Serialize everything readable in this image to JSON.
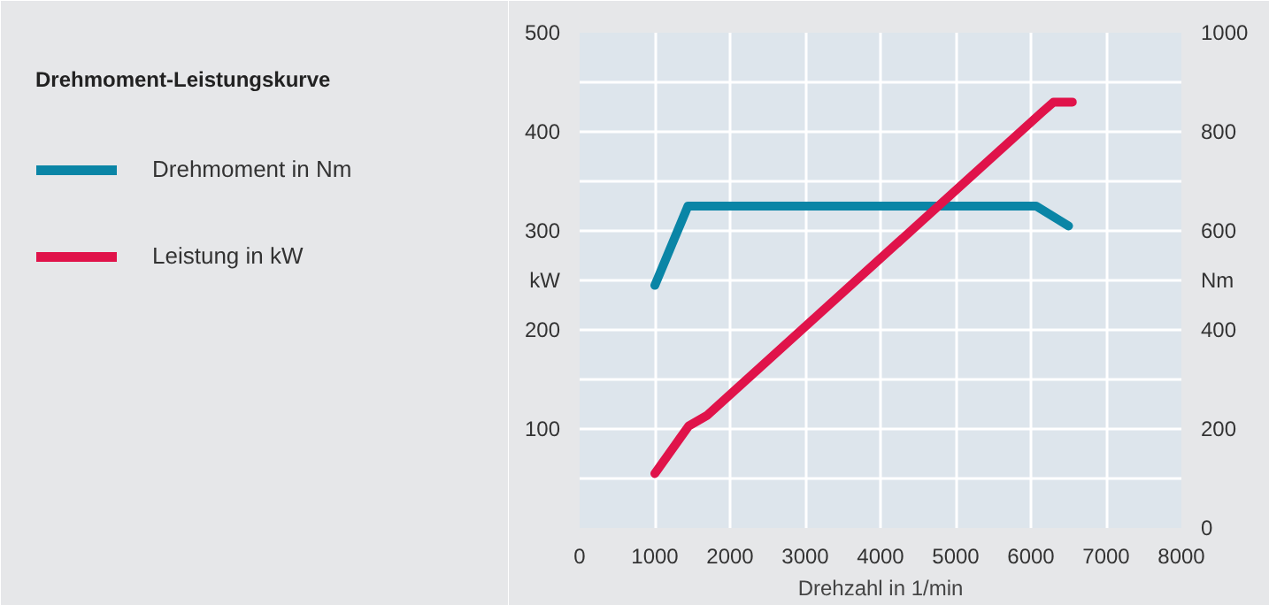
{
  "chart_data": {
    "type": "line",
    "title": "Drehmoment-Leistungskurve",
    "xlabel": "Drehzahl in 1/min",
    "x": [
      1000,
      1450,
      1700,
      6150,
      6300,
      6550
    ],
    "series": [
      {
        "name": "Drehmoment in Nm",
        "color": "#0a85a6",
        "axis": "y2",
        "x": [
          1000,
          1440,
          6070,
          6500
        ],
        "values": [
          490,
          650,
          650,
          610
        ]
      },
      {
        "name": "Leistung in kW",
        "color": "#e0134a",
        "values": [
          55,
          103,
          114,
          420,
          430,
          430
        ]
      }
    ],
    "xlim": [
      0,
      8000
    ],
    "xticks": [
      0,
      1000,
      2000,
      3000,
      4000,
      5000,
      6000,
      7000,
      8000
    ],
    "ylim": [
      0,
      500
    ],
    "yticks": [
      {
        "value": 50,
        "label": null
      },
      100,
      {
        "value": 150,
        "label": null
      },
      200,
      {
        "value": 250,
        "label": "kW"
      },
      300,
      {
        "value": 350,
        "label": null
      },
      400,
      {
        "value": 450,
        "label": null
      },
      500
    ],
    "y2lim": [
      0,
      1000
    ],
    "y2ticks": [
      0,
      200,
      400,
      {
        "value": 500,
        "label": "Nm"
      },
      600,
      800,
      1000
    ],
    "grid": true,
    "legend": "left",
    "line_style": "solid",
    "marker": "none"
  }
}
